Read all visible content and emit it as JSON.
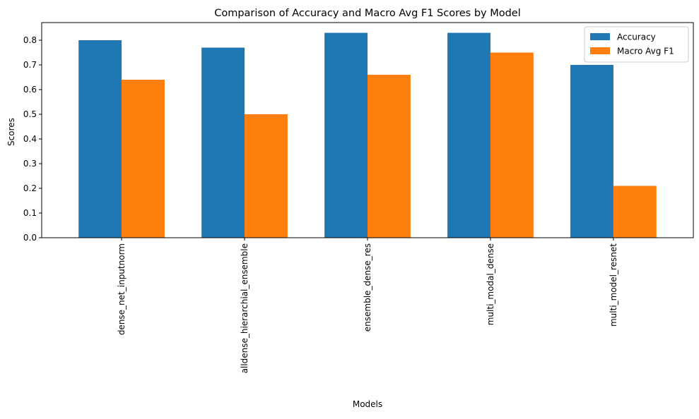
{
  "chart_data": {
    "type": "bar",
    "title": "Comparison of Accuracy and Macro Avg F1 Scores by Model",
    "xlabel": "Models",
    "ylabel": "Scores",
    "categories": [
      "dense_net_inputnorm",
      "alldense_hierarchial_ensemble",
      "ensemble_dense_res",
      "multi_modal_dense",
      "multi_model_resnet"
    ],
    "series": [
      {
        "name": "Accuracy",
        "color": "#1f77b4",
        "values": [
          0.8,
          0.77,
          0.83,
          0.83,
          0.7
        ]
      },
      {
        "name": "Macro Avg F1",
        "color": "#ff7f0e",
        "values": [
          0.64,
          0.5,
          0.66,
          0.75,
          0.21
        ]
      }
    ],
    "yticks": [
      "0.0",
      "0.1",
      "0.2",
      "0.3",
      "0.4",
      "0.5",
      "0.6",
      "0.7",
      "0.8"
    ],
    "ylim": [
      0,
      0.8715
    ],
    "grid": false,
    "legend_position": "top-right"
  }
}
